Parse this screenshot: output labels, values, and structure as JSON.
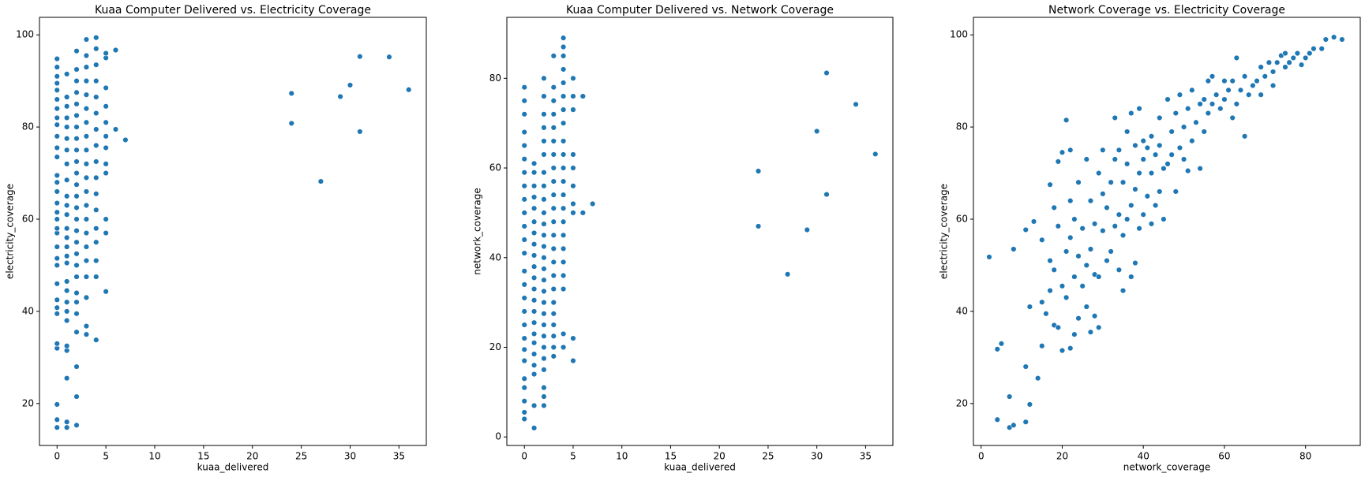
{
  "chart_data": [
    {
      "type": "scatter",
      "title": "Kuaa Computer Delivered vs. Electricity Coverage",
      "x_label": "kuaa_delivered",
      "y_label": "electricity_coverage",
      "color": "#1f77b4",
      "xlim": [
        -1.8,
        37.8
      ],
      "ylim": [
        10.9,
        103.8
      ],
      "xticks": [
        0,
        5,
        10,
        15,
        20,
        25,
        30,
        35
      ],
      "yticks": [
        20,
        40,
        60,
        80,
        100
      ],
      "x": [
        0,
        0,
        0,
        0,
        0,
        0,
        0,
        0,
        0,
        0,
        0,
        0,
        0,
        0,
        0,
        0,
        0,
        0,
        0,
        0,
        0,
        0,
        0,
        0,
        0,
        0,
        0,
        0,
        0,
        0,
        0,
        0,
        1,
        1,
        1,
        1,
        1,
        1,
        1,
        1,
        1,
        1,
        1,
        1,
        1,
        1,
        1,
        1,
        1,
        1,
        1,
        1,
        1,
        1,
        1,
        1,
        1,
        1,
        1,
        2,
        2,
        2,
        2,
        2,
        2,
        2,
        2,
        2,
        2,
        2,
        2,
        2,
        2,
        2,
        2,
        2,
        2,
        2,
        2,
        2,
        2,
        2,
        2,
        2,
        2,
        2,
        3,
        3,
        3,
        3,
        3,
        3,
        3,
        3,
        3,
        3,
        3,
        3,
        3,
        3,
        3,
        3,
        3,
        3,
        3,
        3,
        3,
        4,
        4,
        4,
        4,
        4,
        4,
        4,
        4,
        4,
        4,
        4,
        4,
        4,
        4,
        4,
        4,
        4,
        5,
        5,
        5,
        5,
        5,
        5,
        5,
        5,
        5,
        5,
        5,
        5,
        6,
        6,
        7,
        24,
        24,
        27,
        29,
        30,
        31,
        31,
        34,
        36
      ],
      "values": [
        14.8,
        16.5,
        19.8,
        32,
        33,
        39.5,
        40.8,
        42.5,
        46,
        50,
        51.5,
        54,
        57,
        58,
        60,
        61.5,
        63.5,
        66,
        68,
        69.5,
        73.5,
        75.5,
        78,
        80.5,
        82,
        84,
        86,
        88,
        89.5,
        91,
        93,
        94.8,
        14.8,
        16,
        25.5,
        31.5,
        32.5,
        38,
        40,
        42,
        44.5,
        46.5,
        50.5,
        52,
        54,
        56,
        58,
        61,
        63,
        65,
        68.5,
        72,
        75,
        77.5,
        80,
        82,
        84.5,
        86.5,
        91.5,
        15.3,
        21.5,
        28,
        35.5,
        39.5,
        42,
        44,
        47.5,
        50,
        52.5,
        55,
        57.5,
        60,
        62.5,
        65,
        67.5,
        70,
        72.5,
        75,
        77.5,
        80,
        82.5,
        85,
        87.5,
        90,
        92.5,
        96.5,
        35,
        36.8,
        43,
        47.5,
        51,
        54,
        57,
        60,
        63,
        66,
        69,
        72,
        75,
        78,
        81,
        84,
        87,
        90,
        93,
        95.5,
        99,
        33.8,
        47.5,
        51,
        55,
        58,
        62,
        65.5,
        69,
        72.5,
        76,
        79.5,
        83,
        86.5,
        90,
        93.5,
        97,
        99.4,
        44.3,
        57,
        60,
        70,
        72,
        75.5,
        78,
        81,
        84.5,
        88.5,
        95,
        96,
        96.7,
        79.5,
        77.2,
        87.3,
        80.8,
        68.2,
        86.6,
        89.1,
        95.3,
        79,
        95.2,
        88.1
      ]
    },
    {
      "type": "scatter",
      "title": "Kuaa Computer Delivered vs. Network Coverage",
      "x_label": "kuaa_delivered",
      "y_label": "network_coverage",
      "color": "#1f77b4",
      "xlim": [
        -1.8,
        37.8
      ],
      "ylim": [
        -1.9,
        93.6
      ],
      "xticks": [
        0,
        5,
        10,
        15,
        20,
        25,
        30,
        35
      ],
      "yticks": [
        0,
        20,
        40,
        60,
        80
      ],
      "x": [
        0,
        0,
        0,
        0,
        0,
        0,
        0,
        0,
        0,
        0,
        0,
        0,
        0,
        0,
        0,
        0,
        0,
        0,
        0,
        0,
        0,
        0,
        0,
        0,
        0,
        0,
        1,
        1,
        1,
        1,
        1,
        1,
        1,
        1,
        1,
        1,
        1,
        1,
        1,
        1,
        1,
        1,
        1,
        1,
        1,
        1,
        1,
        1,
        2,
        2,
        2,
        2,
        2,
        2,
        2,
        2,
        2,
        2,
        2,
        2,
        2,
        2,
        2,
        2,
        2,
        2,
        2,
        2,
        2,
        2,
        2,
        2,
        2,
        2,
        2,
        3,
        3,
        3,
        3,
        3,
        3,
        3,
        3,
        3,
        3,
        3,
        3,
        3,
        3,
        3,
        3,
        3,
        3,
        3,
        3,
        3,
        3,
        3,
        4,
        4,
        4,
        4,
        4,
        4,
        4,
        4,
        4,
        4,
        4,
        4,
        4,
        4,
        4,
        4,
        4,
        4,
        4,
        4,
        4,
        4,
        5,
        5,
        5,
        5,
        5,
        5,
        5,
        5,
        5,
        5,
        6,
        6,
        7,
        24,
        24,
        27,
        29,
        30,
        31,
        31,
        34,
        36
      ],
      "values": [
        4,
        5.5,
        8,
        11,
        13,
        17,
        19.5,
        22,
        25,
        28,
        31,
        34,
        37,
        41,
        44,
        47,
        50,
        53,
        56,
        59,
        62,
        65,
        68,
        72,
        75,
        78,
        2,
        7,
        14,
        16,
        18.5,
        21,
        23,
        25.5,
        28,
        30.5,
        33,
        35.5,
        38,
        40.5,
        43,
        45.5,
        48,
        51,
        53.5,
        56,
        59,
        61,
        7,
        9,
        11,
        15,
        17.5,
        20,
        22.5,
        25,
        27.5,
        30,
        32.5,
        35,
        37.5,
        40,
        42.5,
        45,
        47.5,
        50,
        53,
        56,
        59,
        63,
        66,
        69,
        72,
        76,
        80,
        18,
        20,
        22.5,
        25,
        27.5,
        30,
        33,
        36,
        39,
        42,
        45,
        48,
        51,
        54,
        57,
        60,
        63,
        66,
        69,
        72,
        75,
        78,
        85,
        20,
        23,
        33,
        36,
        39,
        42,
        45,
        48,
        51,
        54,
        57,
        60,
        63,
        66,
        70,
        73,
        76,
        79,
        82,
        85,
        87,
        89,
        17,
        22,
        50,
        52,
        56,
        60,
        63,
        73,
        76,
        80,
        50,
        76,
        52,
        59.3,
        47,
        36.3,
        46.2,
        68.2,
        81.2,
        54.1,
        74.2,
        63.1
      ]
    },
    {
      "type": "scatter",
      "title": "Network Coverage vs. Electricity Coverage",
      "x_label": "network_coverage",
      "y_label": "electricity_coverage",
      "color": "#1f77b4",
      "xlim": [
        -1.9,
        93.5
      ],
      "ylim": [
        10.9,
        103.8
      ],
      "xticks": [
        0,
        20,
        40,
        60,
        80
      ],
      "yticks": [
        20,
        40,
        60,
        80,
        100
      ],
      "x": [
        2,
        4,
        4,
        5,
        7,
        7,
        8,
        8,
        11,
        11,
        11,
        12,
        12,
        13,
        14,
        15,
        15,
        15,
        16,
        17,
        17,
        17,
        18,
        18,
        18,
        19,
        19,
        19,
        20,
        20,
        20,
        21,
        21,
        21,
        22,
        22,
        22,
        22,
        23,
        23,
        23,
        24,
        24,
        24,
        25,
        25,
        26,
        26,
        26,
        27,
        27,
        27,
        28,
        28,
        28,
        29,
        29,
        29,
        30,
        30,
        30,
        31,
        31,
        32,
        32,
        33,
        33,
        33,
        34,
        34,
        34,
        35,
        35,
        35,
        36,
        36,
        36,
        37,
        37,
        37,
        38,
        38,
        38,
        39,
        39,
        39,
        40,
        40,
        40,
        41,
        41,
        42,
        42,
        42,
        43,
        43,
        44,
        44,
        44,
        45,
        45,
        46,
        46,
        47,
        47,
        48,
        48,
        49,
        49,
        50,
        50,
        51,
        51,
        52,
        52,
        53,
        54,
        54,
        55,
        55,
        56,
        56,
        57,
        57,
        58,
        59,
        60,
        60,
        61,
        62,
        62,
        63,
        63,
        64,
        65,
        65,
        66,
        67,
        68,
        69,
        69,
        70,
        71,
        72,
        72,
        73,
        74,
        75,
        75,
        76,
        77,
        78,
        79,
        80,
        81,
        82,
        84,
        85,
        87,
        89
      ],
      "values": [
        51.8,
        31.8,
        16.5,
        33,
        14.8,
        21.5,
        15.3,
        53.5,
        16,
        28,
        57.7,
        41,
        19.8,
        59.5,
        25.5,
        32.5,
        42,
        55.5,
        39.5,
        51,
        44.5,
        67.5,
        37,
        49,
        62.5,
        36.5,
        58.5,
        72.5,
        31.5,
        45.5,
        74.5,
        81.5,
        43,
        53,
        32,
        56,
        64,
        75,
        35,
        47.5,
        60,
        38.5,
        52,
        68,
        45.5,
        58,
        41,
        50,
        73,
        35.5,
        53.5,
        64,
        39,
        48,
        59,
        36.5,
        47.5,
        70,
        57.5,
        65.5,
        75,
        51,
        62.5,
        53,
        68,
        58.5,
        82,
        73,
        49,
        61,
        75,
        44.5,
        56.5,
        68,
        60,
        72,
        79,
        47.5,
        63,
        83,
        50.5,
        66.5,
        76,
        58,
        70,
        84,
        61,
        73,
        77,
        65,
        75.5,
        59,
        70,
        78,
        63,
        74,
        66,
        76,
        82,
        60,
        71,
        72,
        86,
        74,
        79,
        66,
        83,
        75.5,
        87,
        73,
        80,
        84,
        70.5,
        77,
        88,
        81,
        71,
        85,
        86,
        79,
        83,
        90,
        85,
        91,
        87,
        84,
        86,
        90,
        88,
        82,
        90,
        95,
        85,
        88,
        91,
        78,
        87,
        89,
        90,
        87,
        93,
        91,
        94,
        92,
        89,
        94,
        95.5,
        93,
        96,
        94,
        95,
        96,
        93.5,
        95,
        96,
        97,
        97,
        99,
        99.5,
        99
      ]
    }
  ]
}
